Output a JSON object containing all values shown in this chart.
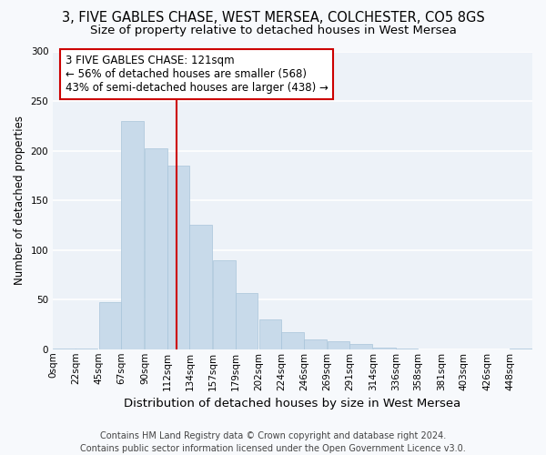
{
  "title": "3, FIVE GABLES CHASE, WEST MERSEA, COLCHESTER, CO5 8GS",
  "subtitle": "Size of property relative to detached houses in West Mersea",
  "xlabel": "Distribution of detached houses by size in West Mersea",
  "ylabel": "Number of detached properties",
  "categories": [
    "0sqm",
    "22sqm",
    "45sqm",
    "67sqm",
    "90sqm",
    "112sqm",
    "134sqm",
    "157sqm",
    "179sqm",
    "202sqm",
    "224sqm",
    "246sqm",
    "269sqm",
    "291sqm",
    "314sqm",
    "336sqm",
    "358sqm",
    "381sqm",
    "403sqm",
    "426sqm",
    "448sqm"
  ],
  "bar_edges": [
    0,
    22,
    45,
    67,
    90,
    112,
    134,
    157,
    179,
    202,
    224,
    246,
    269,
    291,
    314,
    336,
    358,
    381,
    403,
    426,
    448
  ],
  "bar_heights": [
    1,
    1,
    47,
    230,
    202,
    185,
    125,
    90,
    57,
    30,
    17,
    10,
    8,
    5,
    2,
    1,
    0,
    0,
    0,
    0,
    1
  ],
  "bar_color": "#c8daea",
  "bar_edgecolor": "#a8c4da",
  "vline_x": 121,
  "vline_color": "#cc0000",
  "annotation_line1": "3 FIVE GABLES CHASE: 121sqm",
  "annotation_line2": "← 56% of detached houses are smaller (568)",
  "annotation_line3": "43% of semi-detached houses are larger (438) →",
  "annotation_box_color": "#cc0000",
  "annotation_box_fill": "#ffffff",
  "ylim": [
    0,
    300
  ],
  "yticks": [
    0,
    50,
    100,
    150,
    200,
    250,
    300
  ],
  "background_color": "#f7f9fc",
  "plot_bg_color": "#edf2f8",
  "grid_color": "#ffffff",
  "footer_line1": "Contains HM Land Registry data © Crown copyright and database right 2024.",
  "footer_line2": "Contains public sector information licensed under the Open Government Licence v3.0.",
  "title_fontsize": 10.5,
  "subtitle_fontsize": 9.5,
  "xlabel_fontsize": 9.5,
  "ylabel_fontsize": 8.5,
  "tick_fontsize": 7.5,
  "annotation_fontsize": 8.5,
  "footer_fontsize": 7.0
}
